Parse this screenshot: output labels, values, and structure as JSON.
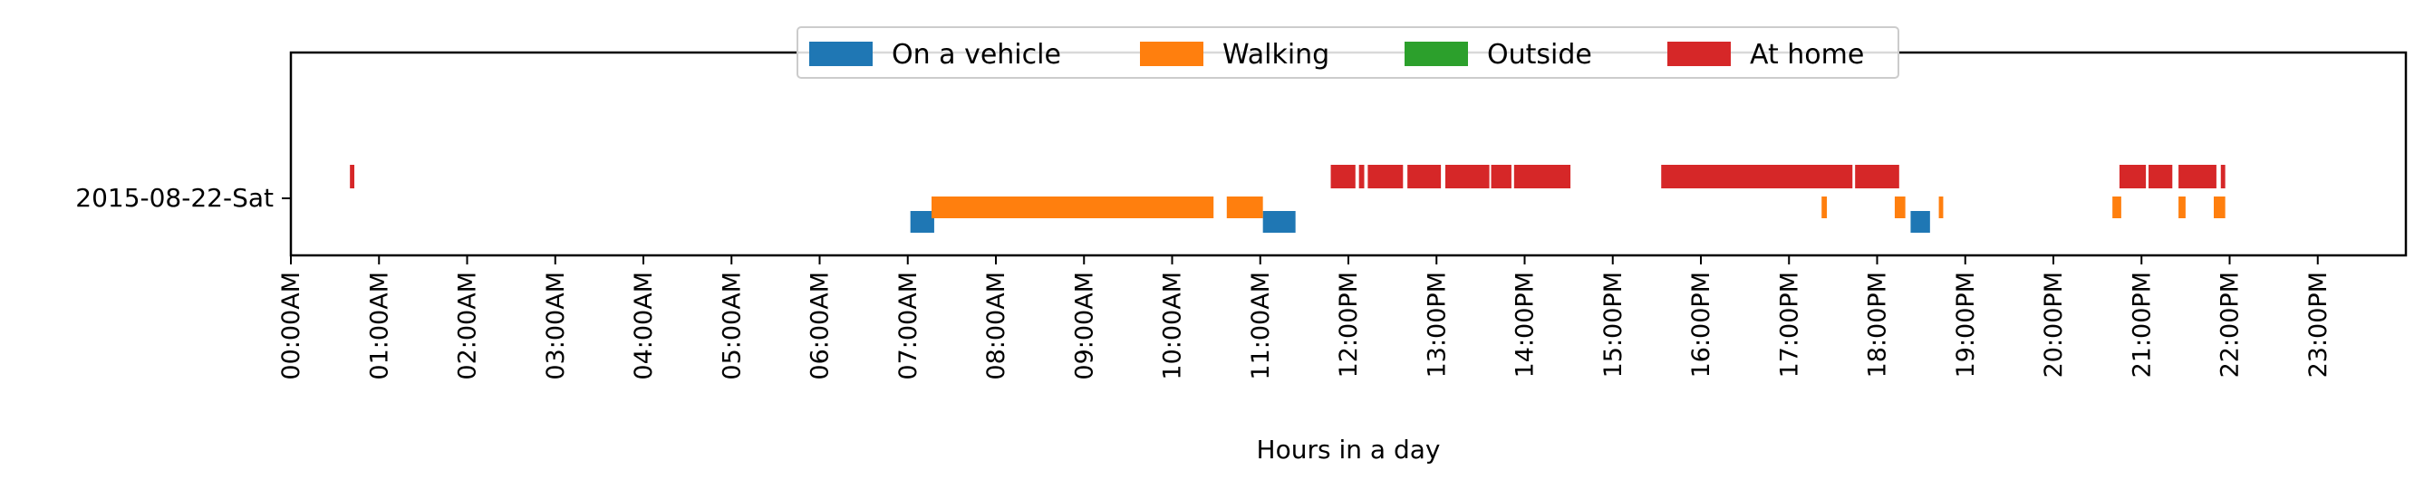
{
  "chart_data": {
    "type": "timeline",
    "title": "",
    "xlabel": "Hours in a day",
    "ylabel": "",
    "xlim": [
      0,
      24
    ],
    "x_ticks": [
      {
        "hour": 0,
        "label": "00:00AM"
      },
      {
        "hour": 1,
        "label": "01:00AM"
      },
      {
        "hour": 2,
        "label": "02:00AM"
      },
      {
        "hour": 3,
        "label": "03:00AM"
      },
      {
        "hour": 4,
        "label": "04:00AM"
      },
      {
        "hour": 5,
        "label": "05:00AM"
      },
      {
        "hour": 6,
        "label": "06:00AM"
      },
      {
        "hour": 7,
        "label": "07:00AM"
      },
      {
        "hour": 8,
        "label": "08:00AM"
      },
      {
        "hour": 9,
        "label": "09:00AM"
      },
      {
        "hour": 10,
        "label": "10:00AM"
      },
      {
        "hour": 11,
        "label": "11:00AM"
      },
      {
        "hour": 12,
        "label": "12:00PM"
      },
      {
        "hour": 13,
        "label": "13:00PM"
      },
      {
        "hour": 14,
        "label": "14:00PM"
      },
      {
        "hour": 15,
        "label": "15:00PM"
      },
      {
        "hour": 16,
        "label": "16:00PM"
      },
      {
        "hour": 17,
        "label": "17:00PM"
      },
      {
        "hour": 18,
        "label": "18:00PM"
      },
      {
        "hour": 19,
        "label": "19:00PM"
      },
      {
        "hour": 20,
        "label": "20:00PM"
      },
      {
        "hour": 21,
        "label": "21:00PM"
      },
      {
        "hour": 22,
        "label": "22:00PM"
      },
      {
        "hour": 23,
        "label": "23:00PM"
      }
    ],
    "row_label": "2015-08-22-Sat",
    "grid": false,
    "legend": {
      "placement": "top-center",
      "columns": 4
    },
    "series": [
      {
        "name": "On a vehicle",
        "color": "#1f77b4",
        "intervals": [
          [
            7.03,
            7.3
          ],
          [
            11.03,
            11.4
          ],
          [
            18.38,
            18.6
          ]
        ]
      },
      {
        "name": "Walking",
        "color": "#ff7f0e",
        "intervals": [
          [
            7.27,
            10.47
          ],
          [
            10.62,
            11.03
          ],
          [
            17.37,
            17.43
          ],
          [
            18.2,
            18.32
          ],
          [
            18.7,
            18.75
          ],
          [
            20.67,
            20.77
          ],
          [
            21.42,
            21.5
          ],
          [
            21.82,
            21.95
          ]
        ]
      },
      {
        "name": "Outside",
        "color": "#2ca02c",
        "intervals": []
      },
      {
        "name": "At home",
        "color": "#d62728",
        "intervals": [
          [
            0.67,
            0.72
          ],
          [
            11.8,
            12.08
          ],
          [
            12.12,
            12.18
          ],
          [
            12.22,
            12.62
          ],
          [
            12.67,
            13.05
          ],
          [
            13.1,
            13.6
          ],
          [
            13.62,
            13.85
          ],
          [
            13.88,
            14.52
          ],
          [
            15.55,
            17.72
          ],
          [
            17.75,
            18.25
          ],
          [
            20.75,
            21.05
          ],
          [
            21.08,
            21.35
          ],
          [
            21.42,
            21.85
          ],
          [
            21.9,
            21.95
          ]
        ]
      }
    ]
  }
}
